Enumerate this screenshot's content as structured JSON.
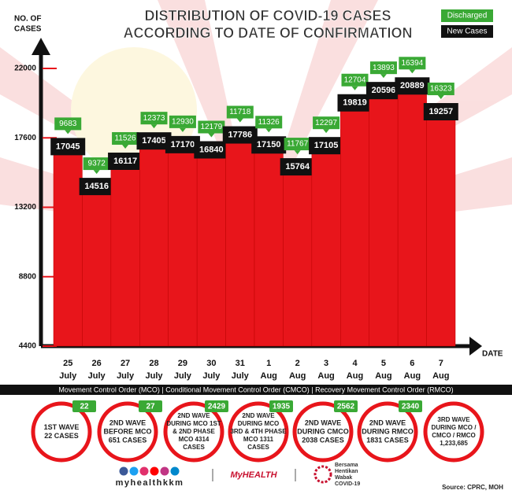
{
  "chart_data": {
    "type": "bar",
    "title": [
      "DISTRIBUTION OF COVID-19 CASES",
      "ACCORDING TO DATE OF CONFIRMATION"
    ],
    "y_label": [
      "NO. OF",
      "CASES"
    ],
    "x_label": "DATE",
    "categories": [
      [
        "25",
        "July"
      ],
      [
        "26",
        "July"
      ],
      [
        "27",
        "July"
      ],
      [
        "28",
        "July"
      ],
      [
        "29",
        "July"
      ],
      [
        "30",
        "July"
      ],
      [
        "31",
        "July"
      ],
      [
        "1",
        "Aug"
      ],
      [
        "2",
        "Aug"
      ],
      [
        "3",
        "Aug"
      ],
      [
        "4",
        "Aug"
      ],
      [
        "5",
        "Aug"
      ],
      [
        "6",
        "Aug"
      ],
      [
        "7",
        "Aug"
      ]
    ],
    "series": [
      {
        "name": "New Cases",
        "color": "#e8151b",
        "values": [
          17045,
          14516,
          16117,
          17405,
          17170,
          16840,
          17786,
          17150,
          15764,
          17105,
          19819,
          20596,
          20889,
          19257
        ]
      },
      {
        "name": "Discharged",
        "color": "#3aa935",
        "values": [
          9683,
          9372,
          11526,
          12373,
          12930,
          12179,
          11718,
          11326,
          11767,
          12297,
          12704,
          13893,
          16394,
          16323
        ]
      }
    ],
    "ylim": [
      4400,
      22000
    ],
    "yticks": [
      4400,
      8800,
      13200,
      17600,
      22000
    ],
    "legend": "top-right"
  },
  "banner": "Movement Control Order (MCO) | Conditional Movement Control Order (CMCO) | Recovery Movement Control Order (RMCO)",
  "waves": [
    {
      "lines": [
        "1ST WAVE",
        "22 CASES"
      ],
      "badge": "22"
    },
    {
      "lines": [
        "2ND WAVE",
        "BEFORE MCO",
        "651 CASES"
      ],
      "badge": "27"
    },
    {
      "lines": [
        "2ND WAVE",
        "DURING MCO 1ST",
        "& 2ND PHASE",
        "MCO 4314",
        "CASES"
      ],
      "badge": "2429"
    },
    {
      "lines": [
        "2ND WAVE",
        "DURING MCO",
        "3RD & 4TH PHASE",
        "MCO 1311",
        "CASES"
      ],
      "badge": "1935"
    },
    {
      "lines": [
        "2ND WAVE",
        "DURING CMCO",
        "2038 CASES"
      ],
      "badge": "2562"
    },
    {
      "lines": [
        "2ND WAVE",
        "DURING RMCO",
        "1831 CASES"
      ],
      "badge": "2340"
    },
    {
      "lines": [
        "3RD WAVE",
        "DURING MCO /",
        "CMCO / RMCO",
        "1,233,685"
      ]
    }
  ],
  "footer": {
    "handle": "myhealthkkm",
    "brand": "MyHEALTH",
    "campaign": [
      "Bersama",
      "Hentikan",
      "Wabak",
      "COVID-19"
    ],
    "source": "Source: CPRC, MOH"
  }
}
